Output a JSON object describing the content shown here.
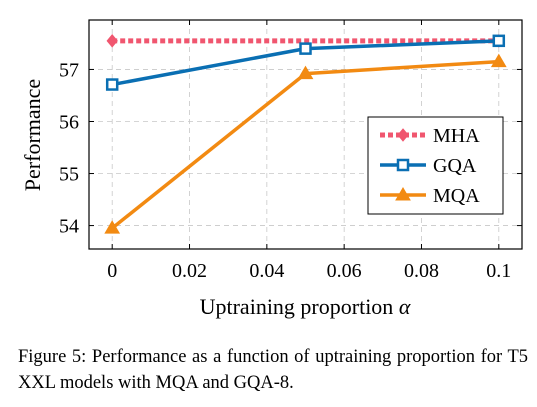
{
  "chart_data": {
    "type": "line",
    "title": "",
    "xlabel": "Uptraining proportion",
    "xlabel_symbol": "α",
    "ylabel": "Performance",
    "xlim": [
      -0.006,
      0.106
    ],
    "ylim": [
      53.55,
      57.95
    ],
    "x_ticks": [
      0,
      0.02,
      0.04,
      0.06,
      0.08,
      0.1
    ],
    "x_tick_labels": [
      "0",
      "0.02",
      "0.04",
      "0.06",
      "0.08",
      "0.1"
    ],
    "y_ticks": [
      54,
      55,
      56,
      57
    ],
    "y_tick_labels": [
      "54",
      "55",
      "56",
      "57"
    ],
    "grid": true,
    "legend_position": "right",
    "series": [
      {
        "name": "MHA",
        "color": "#f0566f",
        "marker": "diamond",
        "style": "dotted",
        "x": [
          0,
          0.1
        ],
        "y": [
          57.55,
          57.55
        ]
      },
      {
        "name": "GQA",
        "color": "#0a6fb3",
        "marker": "square",
        "style": "solid",
        "x": [
          0,
          0.05,
          0.1
        ],
        "y": [
          56.71,
          57.4,
          57.55
        ]
      },
      {
        "name": "MQA",
        "color": "#f28a12",
        "marker": "triangle",
        "style": "solid",
        "x": [
          0,
          0.05,
          0.1
        ],
        "y": [
          53.95,
          56.92,
          57.15
        ]
      }
    ]
  },
  "caption": {
    "text": "Figure 5: Performance as a function of uptraining proportion for T5 XXL models with MQA and GQA-8."
  }
}
